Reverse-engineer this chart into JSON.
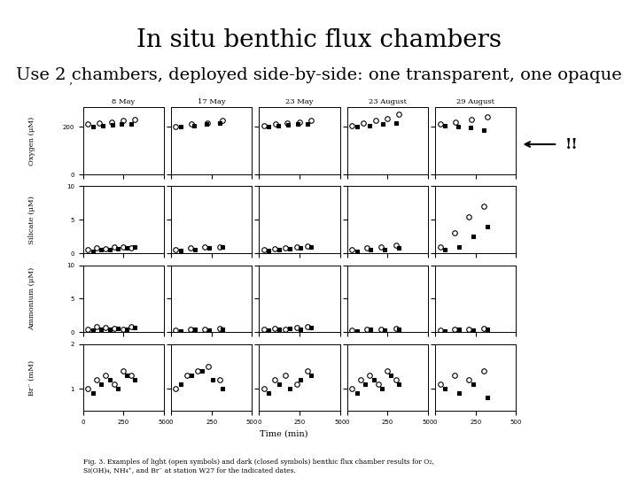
{
  "title": "In situ benthic flux chambers",
  "subtitle": "Use 2 chambers, deployed side-by-side: one transparent, one opaque",
  "title_fontsize": 20,
  "subtitle_fontsize": 14,
  "fig_caption": "Fig. 3. Examples of light (open symbols) and dark (closed symbols) benthic flux chamber results for O₂,\nSi(OH)₄, NH₄⁺, and Br⁻ at station W27 for the indicated dates.",
  "col_labels": [
    "8 May",
    "17 May",
    "23 May",
    "23 August",
    "29 August"
  ],
  "row_labels": [
    "Oxygen (μM)",
    "Silicate (μM)",
    "Ammonium (μM)",
    "Br⁻ (mM)"
  ],
  "time_label": "Time (min)",
  "background_color": "#ffffff",
  "arrow_annotation": "!!"
}
